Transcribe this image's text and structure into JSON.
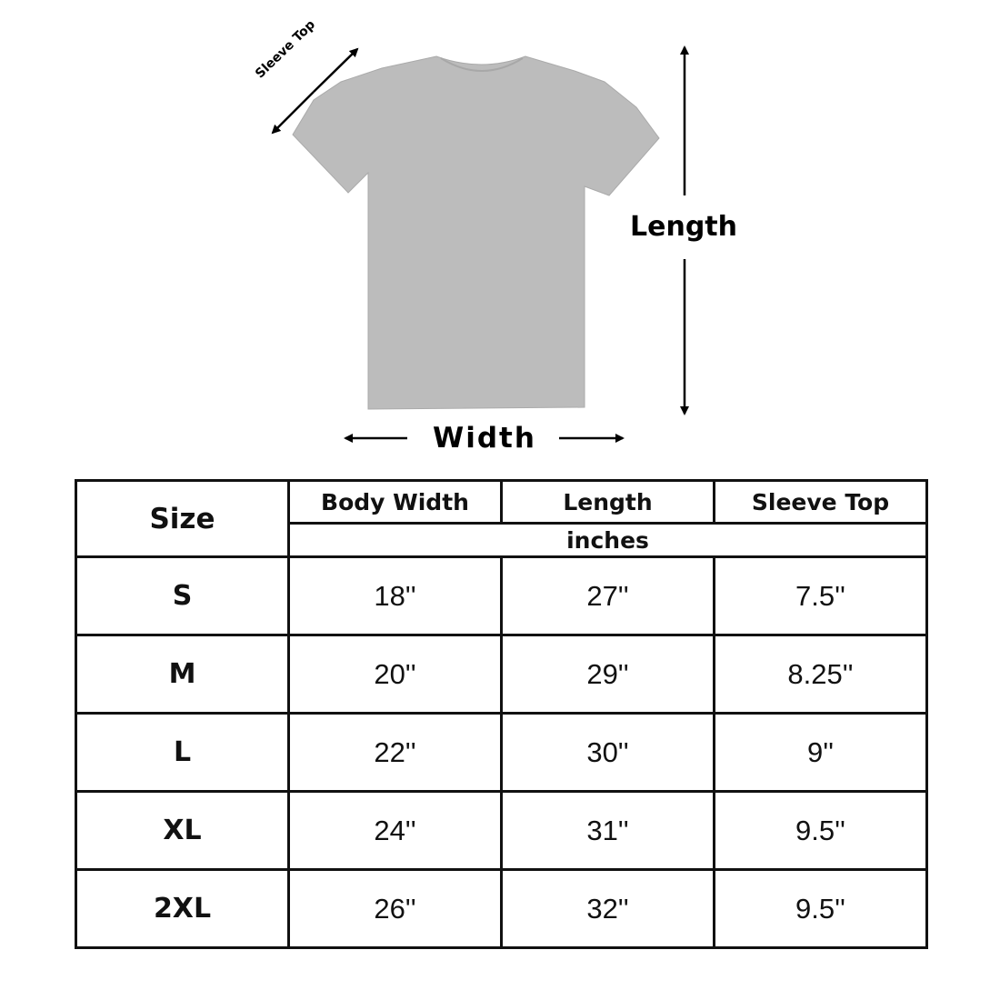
{
  "diagram": {
    "sleeve_label": "Sleeve Top",
    "length_label": "Length",
    "width_label": "Width",
    "shirt_color": "#b9b9b9"
  },
  "table": {
    "headers": {
      "size": "Size",
      "body_width": "Body Width",
      "length": "Length",
      "sleeve_top": "Sleeve Top",
      "unit": "inches"
    },
    "rows": [
      {
        "size": "S",
        "body_width": "18''",
        "length": "27''",
        "sleeve_top": "7.5''"
      },
      {
        "size": "M",
        "body_width": "20''",
        "length": "29''",
        "sleeve_top": "8.25''"
      },
      {
        "size": "L",
        "body_width": "22''",
        "length": "30''",
        "sleeve_top": "9''"
      },
      {
        "size": "XL",
        "body_width": "24''",
        "length": "31''",
        "sleeve_top": "9.5''"
      },
      {
        "size": "2XL",
        "body_width": "26''",
        "length": "32''",
        "sleeve_top": "9.5''"
      }
    ]
  }
}
